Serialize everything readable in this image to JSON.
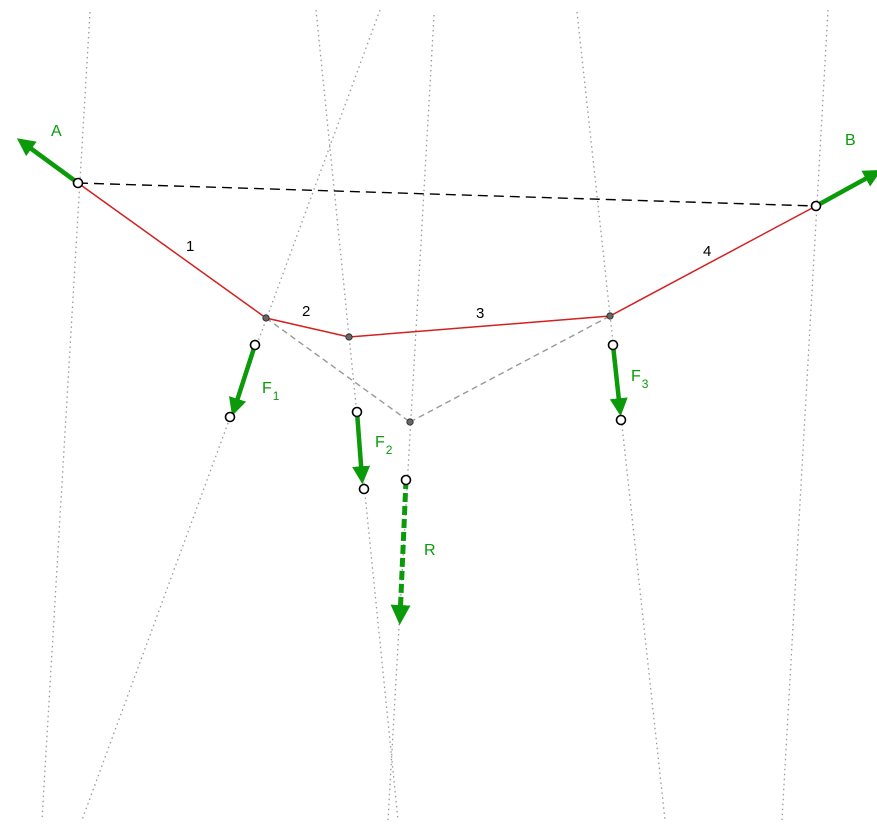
{
  "colors": {
    "force": "#0a9a0a",
    "string_polygon": "#d42020",
    "closing_line": "#000000",
    "construction": "#999999",
    "dotted_line": "#9a9a9a",
    "node_fill": "#666666"
  },
  "labels": {
    "support_a": "A",
    "support_b": "B",
    "segment_1": "1",
    "segment_2": "2",
    "segment_3": "3",
    "segment_4": "4",
    "force_1_letter": "F",
    "force_1_index": "1",
    "force_2_letter": "F",
    "force_2_index": "2",
    "force_3_letter": "F",
    "force_3_index": "3",
    "resultant": "R"
  }
}
